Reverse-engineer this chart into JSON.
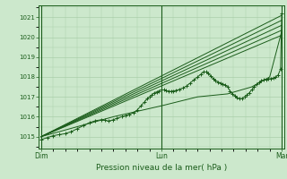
{
  "xlabel": "Pression niveau de la mer( hPa )",
  "bg_color": "#cce8cc",
  "grid_color": "#aacfaa",
  "line_color": "#1a5c1a",
  "ylim": [
    1014.4,
    1021.6
  ],
  "yticks": [
    1015,
    1016,
    1017,
    1018,
    1019,
    1020,
    1021
  ],
  "xlim": [
    -0.02,
    2.02
  ],
  "xtick_labels": [
    "Dim",
    "Lun",
    "Mar"
  ],
  "xtick_positions": [
    0.0,
    1.0,
    2.0
  ],
  "series": [
    [
      0.0,
      1014.85,
      0.05,
      1014.95,
      0.1,
      1015.05,
      0.15,
      1015.1,
      0.2,
      1015.15,
      0.25,
      1015.25,
      0.3,
      1015.4,
      0.35,
      1015.55,
      0.4,
      1015.7,
      0.45,
      1015.8,
      0.5,
      1015.85,
      0.53,
      1015.82,
      0.56,
      1015.78,
      0.6,
      1015.85,
      0.63,
      1015.92,
      0.67,
      1016.0,
      0.7,
      1016.05,
      0.73,
      1016.12,
      0.77,
      1016.2,
      0.8,
      1016.35,
      0.83,
      1016.55,
      0.86,
      1016.75,
      0.88,
      1016.9,
      0.9,
      1017.0,
      0.92,
      1017.1,
      0.94,
      1017.2,
      0.96,
      1017.25,
      0.98,
      1017.3,
      1.0,
      1017.35,
      1.02,
      1017.35,
      1.04,
      1017.32,
      1.06,
      1017.28,
      1.08,
      1017.28,
      1.1,
      1017.3,
      1.12,
      1017.32,
      1.15,
      1017.38,
      1.18,
      1017.45,
      1.21,
      1017.55,
      1.24,
      1017.7,
      1.27,
      1017.85,
      1.3,
      1018.0,
      1.33,
      1018.15,
      1.35,
      1018.25,
      1.37,
      1018.25,
      1.39,
      1018.2,
      1.41,
      1018.05,
      1.43,
      1017.92,
      1.45,
      1017.82,
      1.47,
      1017.75,
      1.49,
      1017.7,
      1.51,
      1017.65,
      1.53,
      1017.6,
      1.55,
      1017.5,
      1.57,
      1017.3,
      1.59,
      1017.15,
      1.61,
      1017.05,
      1.63,
      1016.95,
      1.65,
      1016.9,
      1.67,
      1016.92,
      1.69,
      1017.0,
      1.71,
      1017.1,
      1.73,
      1017.2,
      1.75,
      1017.35,
      1.77,
      1017.5,
      1.79,
      1017.62,
      1.81,
      1017.72,
      1.83,
      1017.8,
      1.85,
      1017.85,
      1.87,
      1017.88,
      1.89,
      1017.9,
      1.91,
      1017.92,
      1.93,
      1017.95,
      1.95,
      1018.0,
      1.97,
      1018.1,
      1.99,
      1018.4,
      2.0,
      1021.2
    ],
    [
      0.0,
      1015.0,
      2.0,
      1021.1
    ],
    [
      0.0,
      1015.0,
      2.0,
      1020.85
    ],
    [
      0.0,
      1015.0,
      2.0,
      1020.6
    ],
    [
      0.0,
      1015.0,
      2.0,
      1020.35
    ],
    [
      0.0,
      1015.0,
      2.0,
      1020.1
    ],
    [
      0.0,
      1015.0,
      0.6,
      1016.0,
      1.0,
      1016.55,
      1.3,
      1017.0,
      1.55,
      1017.15,
      1.75,
      1017.5,
      1.9,
      1018.0,
      2.0,
      1020.3
    ]
  ]
}
